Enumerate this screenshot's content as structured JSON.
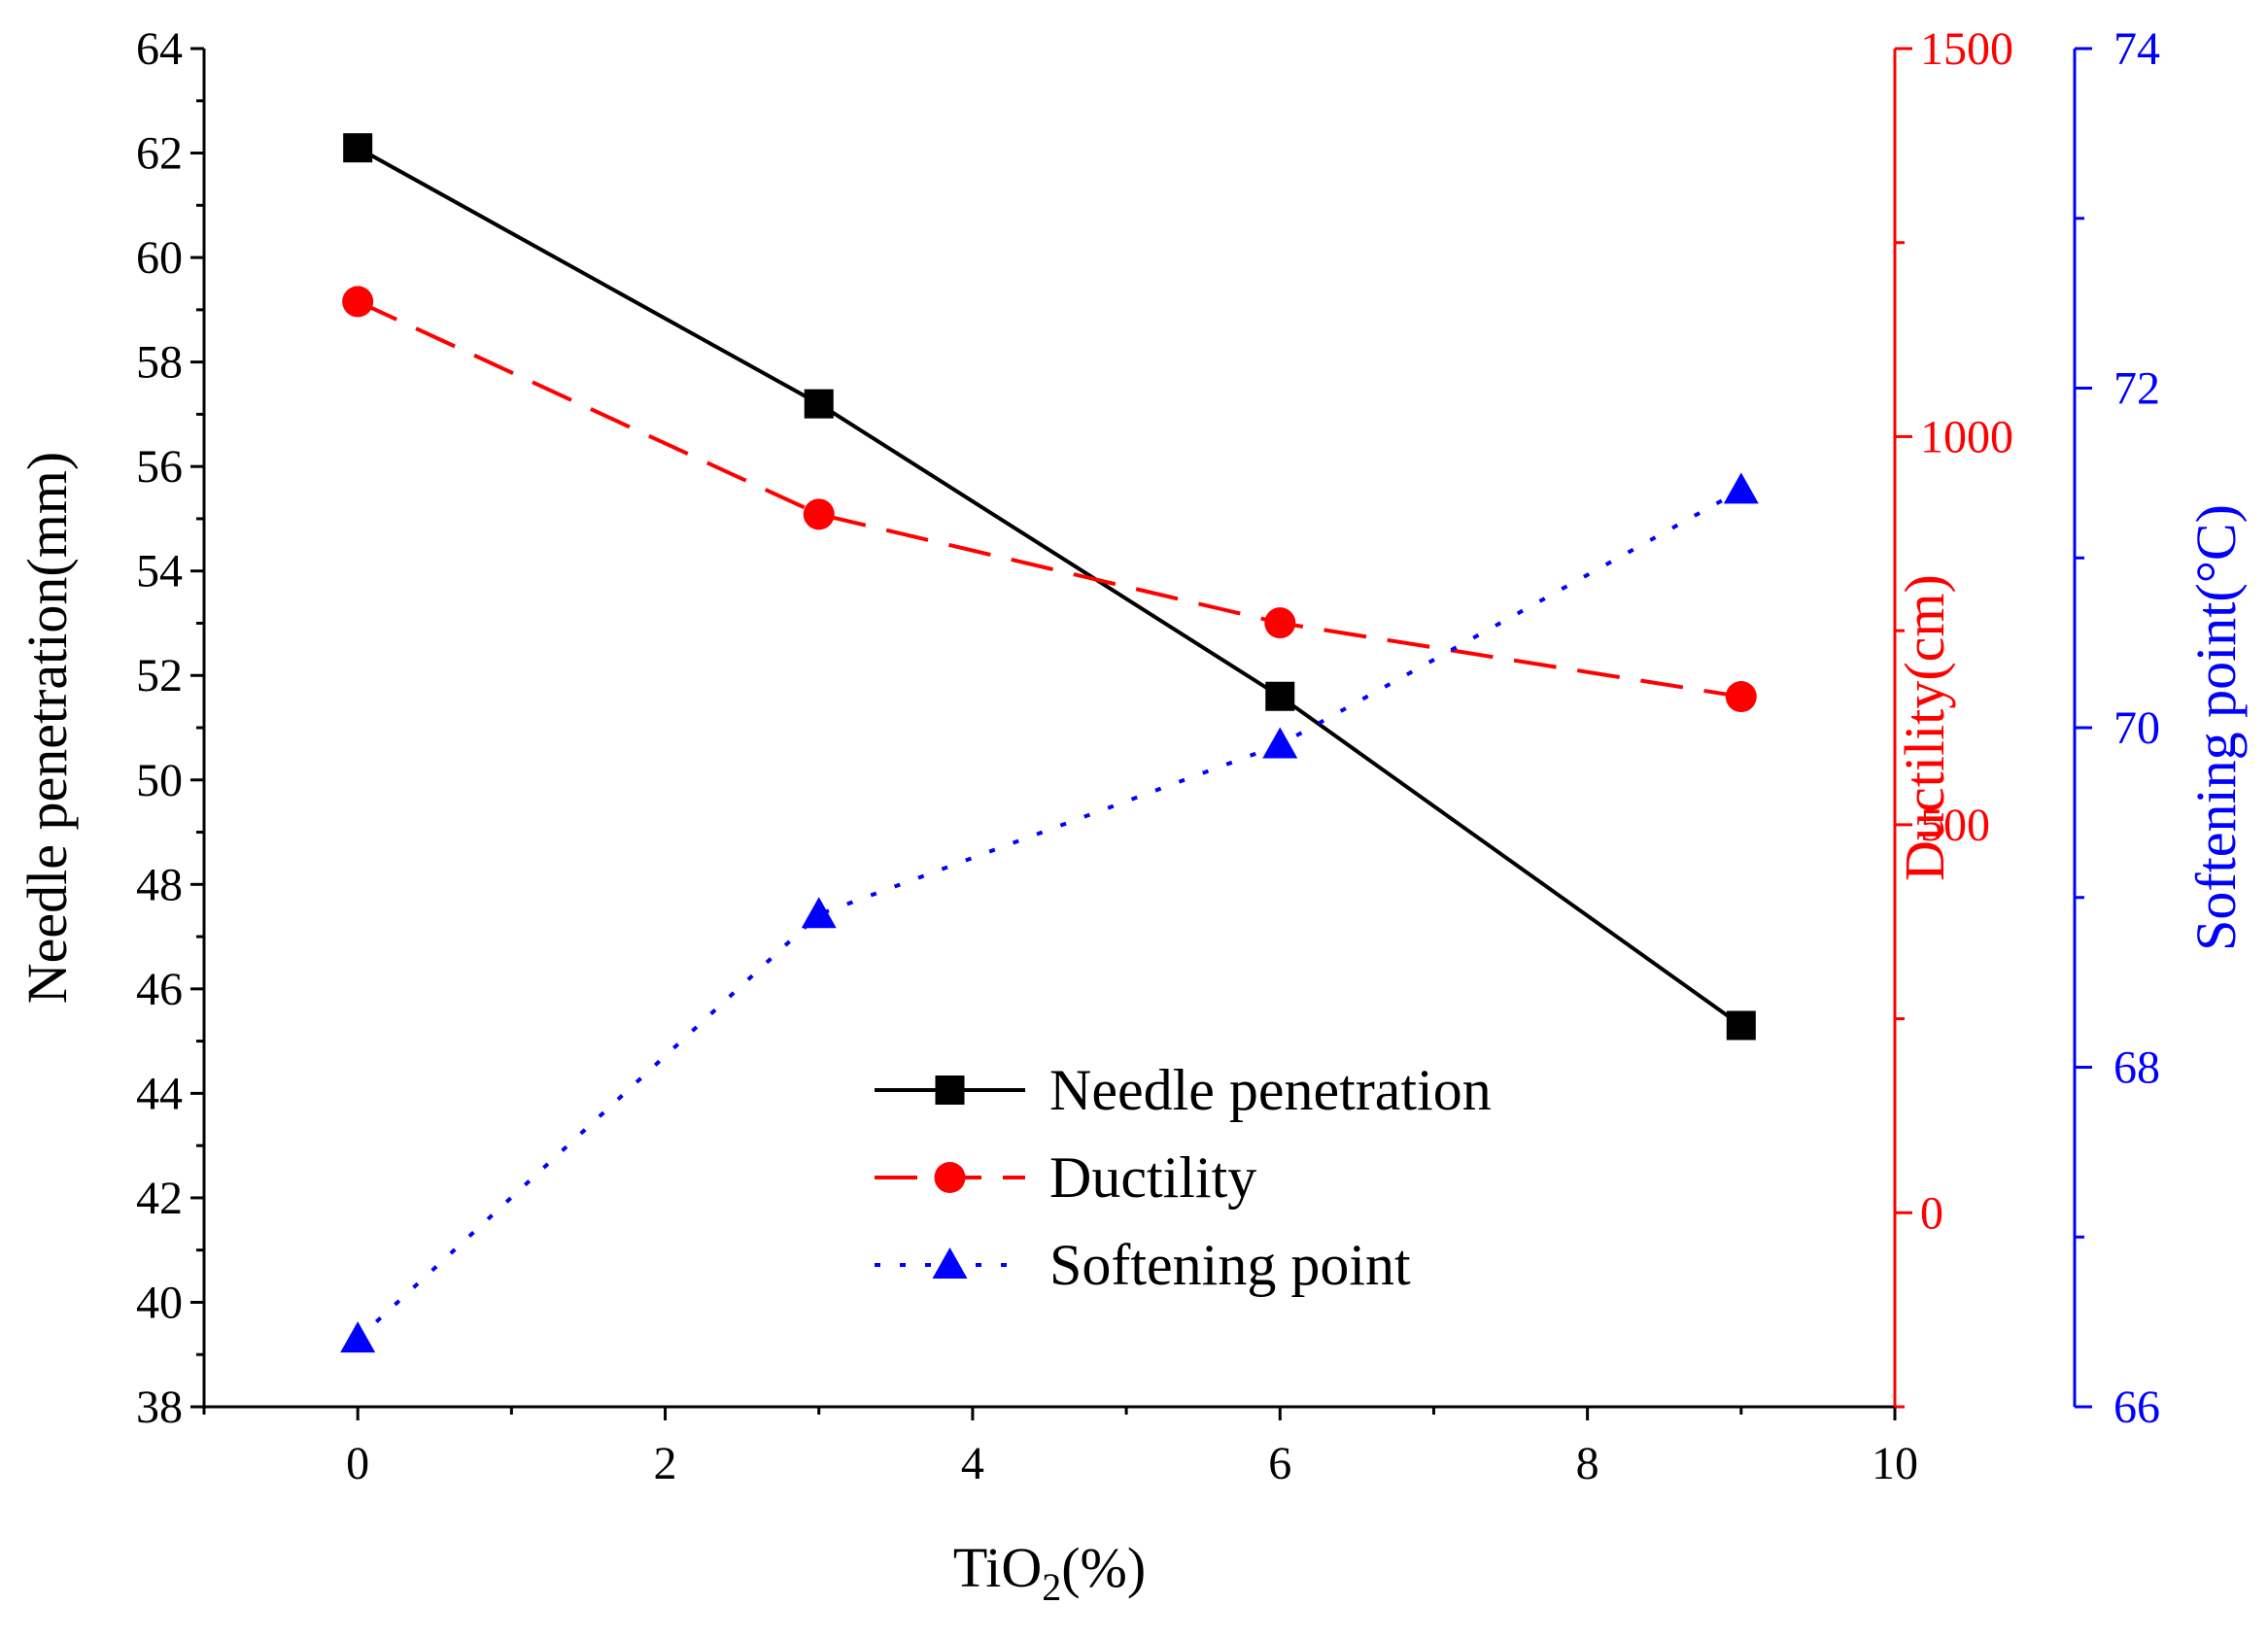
{
  "chart_data": {
    "type": "line",
    "title": "",
    "x": [
      0,
      3,
      6,
      9
    ],
    "xlabel": "TiO2(%)",
    "xlabel_main": "TiO",
    "xlabel_sub": "2",
    "xlabel_suffix": "(%)",
    "xlim": [
      -1,
      10
    ],
    "xticks": [
      0,
      2,
      4,
      6,
      8,
      10
    ],
    "axes": {
      "left": {
        "label": "Needle penetration(mm)",
        "lim": [
          38,
          64
        ],
        "ticks": [
          38,
          40,
          42,
          44,
          46,
          48,
          50,
          52,
          54,
          56,
          58,
          60,
          62,
          64
        ],
        "color": "#000000"
      },
      "right1": {
        "label": "Ductility(cm)",
        "lim": [
          -250,
          1500
        ],
        "ticks": [
          0,
          500,
          1000,
          1500
        ],
        "color": "#ff0000"
      },
      "right2": {
        "label": "Softening point(°C)",
        "lim": [
          66,
          74
        ],
        "ticks": [
          66,
          68,
          70,
          72,
          74
        ],
        "color": "#0000ff"
      }
    },
    "series": [
      {
        "name": "Needle penetration",
        "axis": "left",
        "values": [
          62.1,
          57.2,
          51.6,
          45.3
        ],
        "color": "#000000",
        "marker": "square",
        "dash": "solid"
      },
      {
        "name": "Ductility",
        "axis": "right1",
        "values": [
          1174,
          900,
          760,
          665
        ],
        "color": "#ff0000",
        "marker": "circle",
        "dash": "dash"
      },
      {
        "name": "Softening point",
        "axis": "right2",
        "values": [
          66.4,
          68.9,
          69.9,
          71.4
        ],
        "color": "#0000ff",
        "marker": "triangle",
        "dash": "dot"
      }
    ],
    "legend_position": "center-bottom"
  }
}
